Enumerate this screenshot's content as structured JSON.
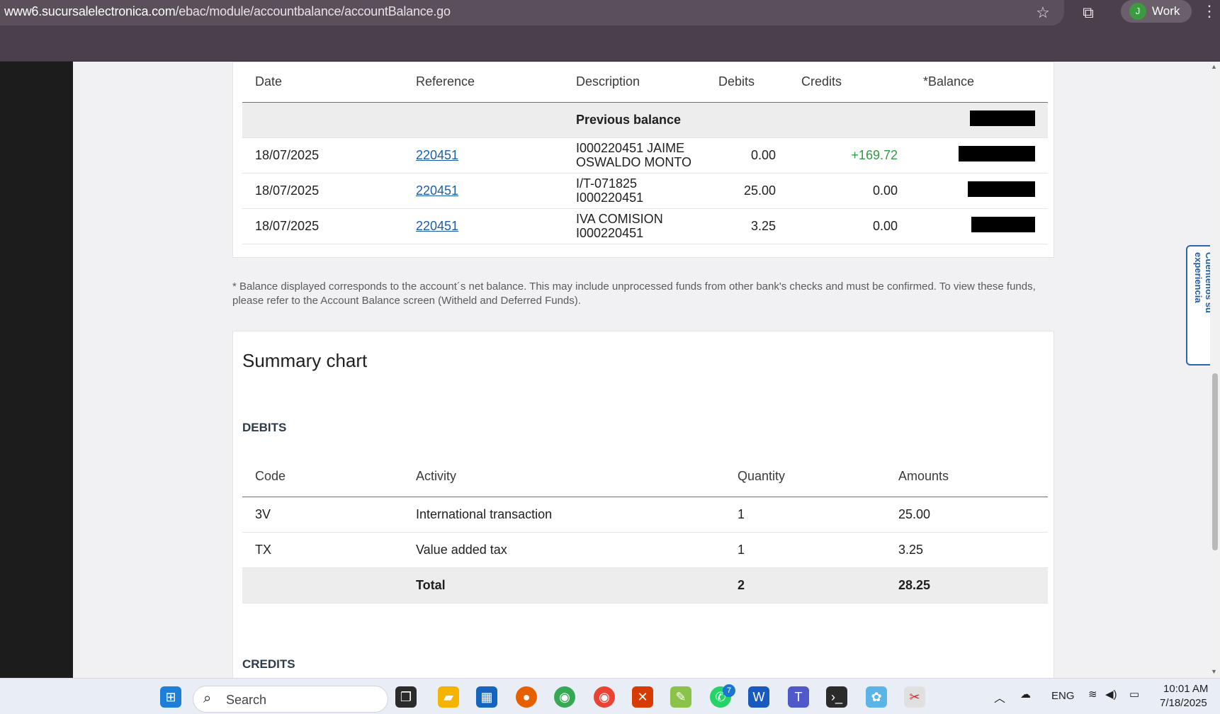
{
  "browser": {
    "url_host": "www6.sucursalelectronica.com",
    "url_path": "/ebac/module/accountbalance/accountBalance.go",
    "profile_initial": "J",
    "profile_label": "Work"
  },
  "transactions": {
    "headers": {
      "date": "Date",
      "reference": "Reference",
      "description": "Description",
      "debits": "Debits",
      "credits": "Credits",
      "balance": "*Balance"
    },
    "previous_balance_label": "Previous balance",
    "rows": [
      {
        "date": "18/07/2025",
        "reference": "220451",
        "description_line1": "I000220451 JAIME",
        "description_line2": "OSWALDO MONTO",
        "debit": "0.00",
        "credit": "+169.72"
      },
      {
        "date": "18/07/2025",
        "reference": "220451",
        "description_line1": "I/T-071825",
        "description_line2": "I000220451",
        "debit": "25.00",
        "credit": "0.00"
      },
      {
        "date": "18/07/2025",
        "reference": "220451",
        "description_line1": "IVA COMISION",
        "description_line2": "I000220451",
        "debit": "3.25",
        "credit": "0.00"
      }
    ]
  },
  "footnote": "* Balance displayed corresponds to the account´s net balance. This may include unprocessed funds from other bank's checks and must be confirmed. To view these funds, please refer to the Account Balance screen (Witheld and Deferred Funds).",
  "summary": {
    "title": "Summary chart",
    "debits_label": "DEBITS",
    "credits_label": "CREDITS",
    "headers": {
      "code": "Code",
      "activity": "Activity",
      "quantity": "Quantity",
      "amounts": "Amounts"
    },
    "rows": [
      {
        "code": "3V",
        "activity": "International transaction",
        "quantity": "1",
        "amount": "25.00"
      },
      {
        "code": "TX",
        "activity": "Value added tax",
        "quantity": "1",
        "amount": "3.25"
      }
    ],
    "total": {
      "label": "Total",
      "quantity": "2",
      "amount": "28.25"
    }
  },
  "feedback_tab": "Cuéntenos su experiencia",
  "taskbar": {
    "search_placeholder": "Search",
    "whatsapp_badge": "7",
    "tray_lang": "ENG",
    "time": "10:01 AM",
    "date": "7/18/2025"
  },
  "colors": {
    "link": "#1b5fa8",
    "credit_positive": "#2f9a46",
    "chrome": "#4a3f4b"
  }
}
